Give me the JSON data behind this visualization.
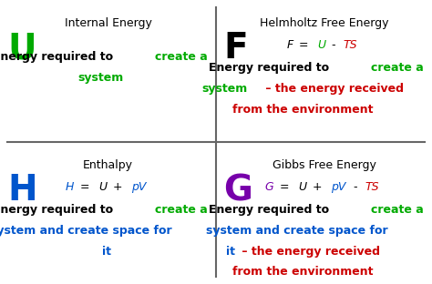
{
  "bg_color": "#ffffff",
  "border_color": "#111111",
  "grid_color": "#666666",
  "figsize": [
    4.74,
    3.12
  ],
  "dpi": 100,
  "cells": [
    {
      "id": "U",
      "col": 0,
      "row": 1,
      "letter": "U",
      "letter_color": "#00aa00",
      "title": "Internal Energy",
      "formula_parts": [],
      "desc_lines": [
        [
          {
            "text": "Energy required to ",
            "color": "#000000",
            "bold": true
          },
          {
            "text": "create a",
            "color": "#00aa00",
            "bold": true
          }
        ],
        [
          {
            "text": "system",
            "color": "#00aa00",
            "bold": true
          }
        ]
      ]
    },
    {
      "id": "F",
      "col": 1,
      "row": 1,
      "letter": "F",
      "letter_color": "#000000",
      "title": "Helmholtz Free Energy",
      "formula_parts": [
        {
          "text": "F",
          "color": "#000000",
          "italic": true
        },
        {
          "text": " = ",
          "color": "#000000",
          "italic": true
        },
        {
          "text": "U",
          "color": "#00aa00",
          "italic": true
        },
        {
          "text": " - ",
          "color": "#000000",
          "italic": true
        },
        {
          "text": "TS",
          "color": "#cc0000",
          "italic": true
        }
      ],
      "desc_lines": [
        [
          {
            "text": "Energy required to ",
            "color": "#000000",
            "bold": true
          },
          {
            "text": "create a",
            "color": "#00aa00",
            "bold": true
          }
        ],
        [
          {
            "text": "system",
            "color": "#00aa00",
            "bold": true
          },
          {
            "text": " – the energy received",
            "color": "#cc0000",
            "bold": true
          }
        ],
        [
          {
            "text": "from the environment",
            "color": "#cc0000",
            "bold": true
          }
        ]
      ]
    },
    {
      "id": "H",
      "col": 0,
      "row": 0,
      "letter": "H",
      "letter_color": "#0055cc",
      "title": "Enthalpy",
      "formula_parts": [
        {
          "text": "H",
          "color": "#0055cc",
          "italic": true
        },
        {
          "text": " = ",
          "color": "#000000",
          "italic": true
        },
        {
          "text": "U",
          "color": "#000000",
          "italic": true
        },
        {
          "text": " + ",
          "color": "#000000",
          "italic": true
        },
        {
          "text": "pV",
          "color": "#0055cc",
          "italic": true
        }
      ],
      "desc_lines": [
        [
          {
            "text": "Energy required to ",
            "color": "#000000",
            "bold": true
          },
          {
            "text": "create a",
            "color": "#00aa00",
            "bold": true
          }
        ],
        [
          {
            "text": "system and create space for",
            "color": "#0055cc",
            "bold": true
          }
        ],
        [
          {
            "text": "it",
            "color": "#0055cc",
            "bold": true
          }
        ]
      ]
    },
    {
      "id": "G",
      "col": 1,
      "row": 0,
      "letter": "G",
      "letter_color": "#7700aa",
      "title": "Gibbs Free Energy",
      "formula_parts": [
        {
          "text": "G",
          "color": "#7700aa",
          "italic": true
        },
        {
          "text": " = ",
          "color": "#000000",
          "italic": true
        },
        {
          "text": "U",
          "color": "#000000",
          "italic": true
        },
        {
          "text": " + ",
          "color": "#000000",
          "italic": true
        },
        {
          "text": "pV",
          "color": "#0055cc",
          "italic": true
        },
        {
          "text": " - ",
          "color": "#000000",
          "italic": true
        },
        {
          "text": "TS",
          "color": "#cc0000",
          "italic": true
        }
      ],
      "desc_lines": [
        [
          {
            "text": "Energy required to ",
            "color": "#000000",
            "bold": true
          },
          {
            "text": "create a",
            "color": "#00aa00",
            "bold": true
          }
        ],
        [
          {
            "text": "system and create space for",
            "color": "#0055cc",
            "bold": true
          }
        ],
        [
          {
            "text": "it",
            "color": "#0055cc",
            "bold": true
          },
          {
            "text": " – the energy received",
            "color": "#cc0000",
            "bold": true
          }
        ],
        [
          {
            "text": "from the environment",
            "color": "#cc0000",
            "bold": true
          }
        ]
      ]
    }
  ]
}
